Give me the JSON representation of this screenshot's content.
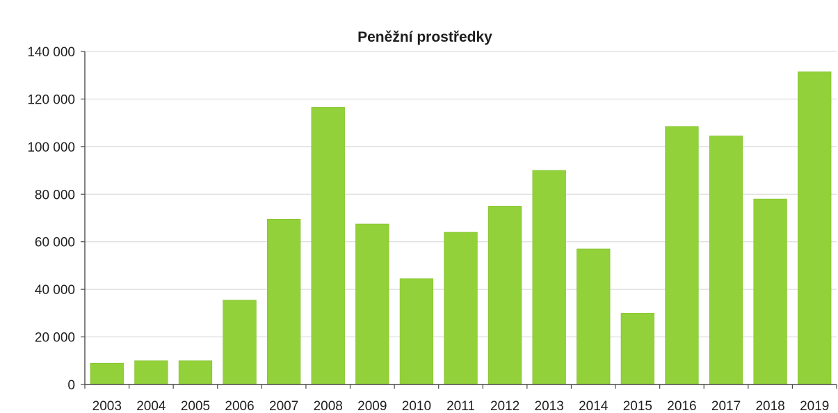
{
  "chart_data": {
    "type": "bar",
    "title": "Peněžní prostředky",
    "xlabel": "",
    "ylabel": "",
    "categories": [
      "2003",
      "2004",
      "2005",
      "2006",
      "2007",
      "2008",
      "2009",
      "2010",
      "2011",
      "2012",
      "2013",
      "2014",
      "2015",
      "2016",
      "2017",
      "2018",
      "2019"
    ],
    "values": [
      9000,
      10000,
      10000,
      35500,
      69500,
      116500,
      67500,
      44500,
      64000,
      75000,
      90000,
      57000,
      30000,
      108500,
      104500,
      78000,
      131500
    ],
    "ylim": [
      0,
      140000
    ],
    "yticks": [
      0,
      20000,
      40000,
      60000,
      80000,
      100000,
      120000,
      140000
    ],
    "ytick_labels": [
      "0",
      "20 000",
      "40 000",
      "60 000",
      "80 000",
      "100 000",
      "120 000",
      "140 000"
    ],
    "grid": true,
    "legend": "none",
    "colors": {
      "bar": "#93d13a",
      "bar_edge": "#7fbf2a",
      "grid": "#d4d4d4",
      "axis": "#4a4a4a",
      "text": "#1e1e1e"
    }
  }
}
